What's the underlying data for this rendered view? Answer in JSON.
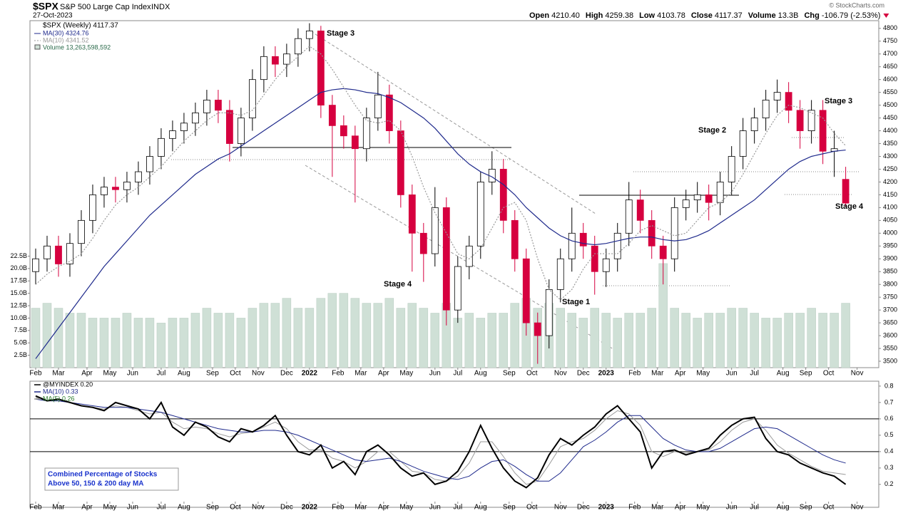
{
  "chart_data": [
    {
      "type": "candlestick",
      "title": "$SPX",
      "subtitle": "S&P 500 Large Cap Index",
      "exchange": "INDX",
      "date": "27-Oct-2023",
      "quote": [
        {
          "label": "Open",
          "value": "4210.40"
        },
        {
          "label": "High",
          "value": "4259.38"
        },
        {
          "label": "Low",
          "value": "4103.78"
        },
        {
          "label": "Close",
          "value": "4117.37"
        },
        {
          "label": "Volume",
          "value": "13.3B"
        },
        {
          "label": "Chg",
          "value": "-106.79 (-2.53%)"
        }
      ],
      "copyright": "© StockCharts.com",
      "series_name": "$SPX (Weekly) 4117.37",
      "up_color": "#ffffff",
      "down_color": "#d6003f",
      "open": [
        3850,
        3900,
        3950,
        3880,
        3960,
        4050,
        4150,
        4180,
        4170,
        4200,
        4240,
        4300,
        4370,
        4400,
        4430,
        4470,
        4520,
        4480,
        4350,
        4450,
        4600,
        4690,
        4660,
        4700,
        4760,
        4790,
        4500,
        4420,
        4380,
        4330,
        4450,
        4540,
        4400,
        4150,
        4000,
        3920,
        4100,
        3700,
        3870,
        3950,
        4200,
        4250,
        4050,
        3900,
        3650,
        3600,
        3780,
        3900,
        4000,
        3950,
        3850,
        3900,
        4000,
        4130,
        4050,
        3950,
        3900,
        4100,
        4130,
        4150,
        4120,
        4200,
        4300,
        4400,
        4450,
        4520,
        4550,
        4480,
        4400,
        4480,
        4320,
        4210.4
      ],
      "high": [
        3940,
        3990,
        3990,
        4000,
        4090,
        4190,
        4220,
        4220,
        4240,
        4280,
        4340,
        4410,
        4440,
        4470,
        4510,
        4560,
        4560,
        4520,
        4490,
        4640,
        4730,
        4730,
        4740,
        4800,
        4820,
        4810,
        4540,
        4460,
        4420,
        4490,
        4630,
        4580,
        4440,
        4190,
        4040,
        4180,
        4140,
        3910,
        3990,
        4240,
        4320,
        4290,
        4090,
        3940,
        3690,
        3820,
        3940,
        4100,
        4040,
        3990,
        3940,
        4040,
        4200,
        4170,
        4090,
        3990,
        4140,
        4170,
        4200,
        4190,
        4240,
        4340,
        4450,
        4490,
        4560,
        4600,
        4590,
        4520,
        4520,
        4520,
        4400,
        4259.38
      ],
      "low": [
        3800,
        3850,
        3830,
        3830,
        3910,
        4000,
        4100,
        4120,
        4120,
        4150,
        4190,
        4250,
        4320,
        4350,
        4380,
        4420,
        4430,
        4280,
        4300,
        4400,
        4550,
        4610,
        4610,
        4650,
        4710,
        4450,
        4220,
        4330,
        4120,
        4280,
        4400,
        4350,
        4100,
        3850,
        3810,
        3870,
        3640,
        3650,
        3820,
        3900,
        4150,
        4000,
        3850,
        3600,
        3490,
        3550,
        3730,
        3850,
        3900,
        3760,
        3790,
        3850,
        3950,
        4000,
        3900,
        3800,
        3850,
        4050,
        4080,
        4050,
        4070,
        4150,
        4250,
        4350,
        4400,
        4470,
        4430,
        4330,
        4350,
        4270,
        4220,
        4103.78
      ],
      "close": [
        3900,
        3950,
        3880,
        3960,
        4050,
        4150,
        4180,
        4170,
        4200,
        4240,
        4300,
        4370,
        4400,
        4430,
        4470,
        4520,
        4480,
        4350,
        4450,
        4600,
        4690,
        4660,
        4700,
        4760,
        4790,
        4500,
        4420,
        4380,
        4330,
        4450,
        4540,
        4400,
        4150,
        4000,
        3920,
        4100,
        3700,
        3870,
        3950,
        4200,
        4250,
        4050,
        3900,
        3650,
        3600,
        3780,
        3900,
        4000,
        3950,
        3850,
        3900,
        4000,
        4130,
        4050,
        3950,
        3900,
        4100,
        4130,
        4150,
        4120,
        4200,
        4300,
        4400,
        4450,
        4520,
        4550,
        4480,
        4400,
        4480,
        4320,
        4330,
        4117.37
      ],
      "lines": [
        {
          "name": "MA(30) 4324.76",
          "color": "#1f2a8c",
          "dash": false,
          "values": [
            3510,
            3570,
            3630,
            3690,
            3750,
            3810,
            3870,
            3920,
            3970,
            4020,
            4070,
            4110,
            4150,
            4190,
            4230,
            4260,
            4290,
            4310,
            4340,
            4370,
            4400,
            4430,
            4460,
            4490,
            4520,
            4550,
            4560,
            4565,
            4560,
            4550,
            4545,
            4530,
            4510,
            4480,
            4450,
            4410,
            4360,
            4310,
            4270,
            4240,
            4220,
            4190,
            4150,
            4100,
            4060,
            4020,
            3990,
            3970,
            3960,
            3955,
            3960,
            3970,
            3980,
            3985,
            3985,
            3975,
            3970,
            3975,
            3990,
            4010,
            4040,
            4070,
            4100,
            4130,
            4170,
            4210,
            4250,
            4280,
            4300,
            4310,
            4320,
            4324.76
          ]
        },
        {
          "name": "MA(10) 4341.52",
          "color": "#999999",
          "dash": true,
          "values": [
            3800,
            3840,
            3870,
            3890,
            3920,
            3980,
            4050,
            4110,
            4150,
            4180,
            4220,
            4260,
            4310,
            4360,
            4400,
            4440,
            4470,
            4470,
            4460,
            4480,
            4540,
            4600,
            4650,
            4690,
            4730,
            4700,
            4640,
            4570,
            4500,
            4440,
            4430,
            4440,
            4400,
            4300,
            4180,
            4080,
            4000,
            3920,
            3900,
            3940,
            4020,
            4100,
            4120,
            4050,
            3900,
            3780,
            3740,
            3780,
            3860,
            3920,
            3920,
            3920,
            3960,
            4010,
            4030,
            4010,
            3990,
            4000,
            4050,
            4100,
            4120,
            4160,
            4230,
            4310,
            4390,
            4460,
            4500,
            4490,
            4470,
            4450,
            4390,
            4341.52
          ]
        }
      ],
      "volume": {
        "name": "Volume 13,263,598,592",
        "color": "#cfe0d6",
        "values": [
          12,
          13,
          12,
          11,
          11,
          10,
          10,
          10,
          11,
          10,
          10,
          9,
          10,
          10,
          11,
          12,
          11,
          11,
          10,
          12,
          13,
          13,
          14,
          12,
          12,
          14,
          15,
          15,
          14,
          13,
          13,
          14,
          12,
          13,
          12,
          11,
          13,
          10,
          11,
          10,
          11,
          11,
          13,
          14,
          12,
          13,
          12,
          11,
          10,
          12,
          11,
          10,
          11,
          11,
          12,
          21,
          12,
          11,
          10,
          11,
          11,
          12,
          12,
          11,
          10,
          10,
          11,
          11,
          12,
          11,
          11,
          13
        ]
      },
      "xlim": [
        -0.5,
        73.9
      ],
      "xticks": [
        {
          "value": 0,
          "label": "Feb"
        },
        {
          "value": 2,
          "label": "Mar"
        },
        {
          "value": 4.5,
          "label": "Apr"
        },
        {
          "value": 6.5,
          "label": "May"
        },
        {
          "value": 8.5,
          "label": "Jun"
        },
        {
          "value": 11,
          "label": "Jul"
        },
        {
          "value": 13,
          "label": "Aug"
        },
        {
          "value": 15.5,
          "label": "Sep"
        },
        {
          "value": 17.5,
          "label": "Oct"
        },
        {
          "value": 19.5,
          "label": "Nov"
        },
        {
          "value": 22,
          "label": "Dec"
        },
        {
          "value": 24,
          "label": "2022"
        },
        {
          "value": 26.5,
          "label": "Feb"
        },
        {
          "value": 28.5,
          "label": "Mar"
        },
        {
          "value": 30.5,
          "label": "Apr"
        },
        {
          "value": 32.5,
          "label": "May"
        },
        {
          "value": 35,
          "label": "Jun"
        },
        {
          "value": 37,
          "label": "Jul"
        },
        {
          "value": 39,
          "label": "Aug"
        },
        {
          "value": 41.5,
          "label": "Sep"
        },
        {
          "value": 43.5,
          "label": "Oct"
        },
        {
          "value": 46,
          "label": "Nov"
        },
        {
          "value": 48,
          "label": "Dec"
        },
        {
          "value": 50,
          "label": "2023"
        },
        {
          "value": 52.5,
          "label": "Feb"
        },
        {
          "value": 54.5,
          "label": "Mar"
        },
        {
          "value": 56.5,
          "label": "Apr"
        },
        {
          "value": 58.5,
          "label": "May"
        },
        {
          "value": 61,
          "label": "Jun"
        },
        {
          "value": 63,
          "label": "Jul"
        },
        {
          "value": 65.5,
          "label": "Aug"
        },
        {
          "value": 67.5,
          "label": "Sep"
        },
        {
          "value": 69.5,
          "label": "Oct"
        },
        {
          "value": 72,
          "label": "Nov"
        }
      ],
      "ylim": [
        3475,
        4830
      ],
      "yticks": [
        3500,
        3550,
        3600,
        3650,
        3700,
        3750,
        3800,
        3850,
        3900,
        3950,
        4000,
        4050,
        4100,
        4150,
        4200,
        4250,
        4300,
        4350,
        4400,
        4450,
        4500,
        4550,
        4600,
        4650,
        4700,
        4750,
        4800
      ],
      "y2lim": [
        0,
        70
      ],
      "y2ticks": [
        {
          "value": 2.5,
          "label": "2.5B"
        },
        {
          "value": 5,
          "label": "5.0B"
        },
        {
          "value": 7.5,
          "label": "7.5B"
        },
        {
          "value": 10,
          "label": "10.0B"
        },
        {
          "value": 12.5,
          "label": "12.5B"
        },
        {
          "value": 15,
          "label": "15.0B"
        },
        {
          "value": 17.5,
          "label": "17.5B"
        },
        {
          "value": 20,
          "label": "20.0B"
        },
        {
          "value": 22.5,
          "label": "22.5B"
        }
      ],
      "annotations": [
        "Stage 3",
        "Stage 4",
        "Stage 1",
        "Stage 2",
        "Stage 3",
        "Stage 4"
      ]
    },
    {
      "type": "line",
      "series": [
        {
          "name": "@MYINDEX 0.20",
          "color": "#000000",
          "width": 2,
          "values": [
            0.74,
            0.71,
            0.72,
            0.7,
            0.68,
            0.67,
            0.65,
            0.7,
            0.68,
            0.66,
            0.6,
            0.7,
            0.55,
            0.5,
            0.58,
            0.55,
            0.49,
            0.46,
            0.54,
            0.52,
            0.56,
            0.62,
            0.5,
            0.4,
            0.38,
            0.44,
            0.3,
            0.34,
            0.26,
            0.4,
            0.44,
            0.38,
            0.3,
            0.25,
            0.27,
            0.2,
            0.22,
            0.28,
            0.4,
            0.56,
            0.42,
            0.3,
            0.22,
            0.18,
            0.24,
            0.38,
            0.48,
            0.44,
            0.5,
            0.55,
            0.63,
            0.68,
            0.6,
            0.52,
            0.3,
            0.4,
            0.41,
            0.38,
            0.4,
            0.42,
            0.5,
            0.56,
            0.6,
            0.61,
            0.48,
            0.4,
            0.38,
            0.33,
            0.3,
            0.27,
            0.25,
            0.2
          ]
        },
        {
          "name": "MA(10) 0.33",
          "color": "#1f2a8c",
          "width": 1,
          "values": [
            0.72,
            0.71,
            0.71,
            0.7,
            0.69,
            0.68,
            0.67,
            0.67,
            0.67,
            0.66,
            0.65,
            0.64,
            0.62,
            0.6,
            0.58,
            0.56,
            0.54,
            0.53,
            0.52,
            0.52,
            0.53,
            0.53,
            0.52,
            0.5,
            0.47,
            0.44,
            0.41,
            0.38,
            0.35,
            0.34,
            0.35,
            0.36,
            0.34,
            0.31,
            0.28,
            0.26,
            0.24,
            0.23,
            0.25,
            0.3,
            0.34,
            0.35,
            0.31,
            0.26,
            0.22,
            0.22,
            0.27,
            0.35,
            0.43,
            0.47,
            0.52,
            0.58,
            0.62,
            0.62,
            0.55,
            0.48,
            0.44,
            0.41,
            0.4,
            0.4,
            0.42,
            0.46,
            0.5,
            0.54,
            0.55,
            0.54,
            0.5,
            0.46,
            0.42,
            0.38,
            0.35,
            0.33
          ]
        },
        {
          "name": "MA(5) 0.26",
          "color": "#9a9a9a",
          "width": 1,
          "values": [
            0.73,
            0.71,
            0.71,
            0.7,
            0.68,
            0.67,
            0.66,
            0.68,
            0.67,
            0.65,
            0.63,
            0.64,
            0.58,
            0.54,
            0.55,
            0.54,
            0.51,
            0.49,
            0.51,
            0.52,
            0.55,
            0.58,
            0.54,
            0.46,
            0.41,
            0.41,
            0.36,
            0.34,
            0.3,
            0.34,
            0.4,
            0.4,
            0.34,
            0.28,
            0.27,
            0.23,
            0.22,
            0.25,
            0.33,
            0.46,
            0.46,
            0.37,
            0.27,
            0.2,
            0.22,
            0.32,
            0.43,
            0.46,
            0.48,
            0.53,
            0.6,
            0.65,
            0.63,
            0.56,
            0.4,
            0.37,
            0.4,
            0.39,
            0.4,
            0.41,
            0.46,
            0.53,
            0.58,
            0.6,
            0.53,
            0.44,
            0.39,
            0.35,
            0.31,
            0.28,
            0.27,
            0.26
          ]
        }
      ],
      "xlim": [
        -0.5,
        73.9
      ],
      "xticks": [
        {
          "value": 0,
          "label": "Feb"
        },
        {
          "value": 2,
          "label": "Mar"
        },
        {
          "value": 4.5,
          "label": "Apr"
        },
        {
          "value": 6.5,
          "label": "May"
        },
        {
          "value": 8.5,
          "label": "Jun"
        },
        {
          "value": 11,
          "label": "Jul"
        },
        {
          "value": 13,
          "label": "Aug"
        },
        {
          "value": 15.5,
          "label": "Sep"
        },
        {
          "value": 17.5,
          "label": "Oct"
        },
        {
          "value": 19.5,
          "label": "Nov"
        },
        {
          "value": 22,
          "label": "Dec"
        },
        {
          "value": 24,
          "label": "2022"
        },
        {
          "value": 26.5,
          "label": "Feb"
        },
        {
          "value": 28.5,
          "label": "Mar"
        },
        {
          "value": 30.5,
          "label": "Apr"
        },
        {
          "value": 32.5,
          "label": "May"
        },
        {
          "value": 35,
          "label": "Jun"
        },
        {
          "value": 37,
          "label": "Jul"
        },
        {
          "value": 39,
          "label": "Aug"
        },
        {
          "value": 41.5,
          "label": "Sep"
        },
        {
          "value": 43.5,
          "label": "Oct"
        },
        {
          "value": 46,
          "label": "Nov"
        },
        {
          "value": 48,
          "label": "Dec"
        },
        {
          "value": 50,
          "label": "2023"
        },
        {
          "value": 52.5,
          "label": "Feb"
        },
        {
          "value": 54.5,
          "label": "Mar"
        },
        {
          "value": 56.5,
          "label": "Apr"
        },
        {
          "value": 58.5,
          "label": "May"
        },
        {
          "value": 61,
          "label": "Jun"
        },
        {
          "value": 63,
          "label": "Jul"
        },
        {
          "value": 65.5,
          "label": "Aug"
        },
        {
          "value": 67.5,
          "label": "Sep"
        },
        {
          "value": 69.5,
          "label": "Oct"
        },
        {
          "value": 72,
          "label": "Nov"
        }
      ],
      "ylim": [
        0.06,
        0.83
      ],
      "yticks": [
        0.2,
        0.3,
        0.4,
        0.5,
        0.6,
        0.7,
        0.8
      ],
      "ref_lines": [
        0.6,
        0.4
      ],
      "note": [
        "Combined Percentage of Stocks",
        "Above 50, 150 & 200 day MA"
      ]
    }
  ]
}
